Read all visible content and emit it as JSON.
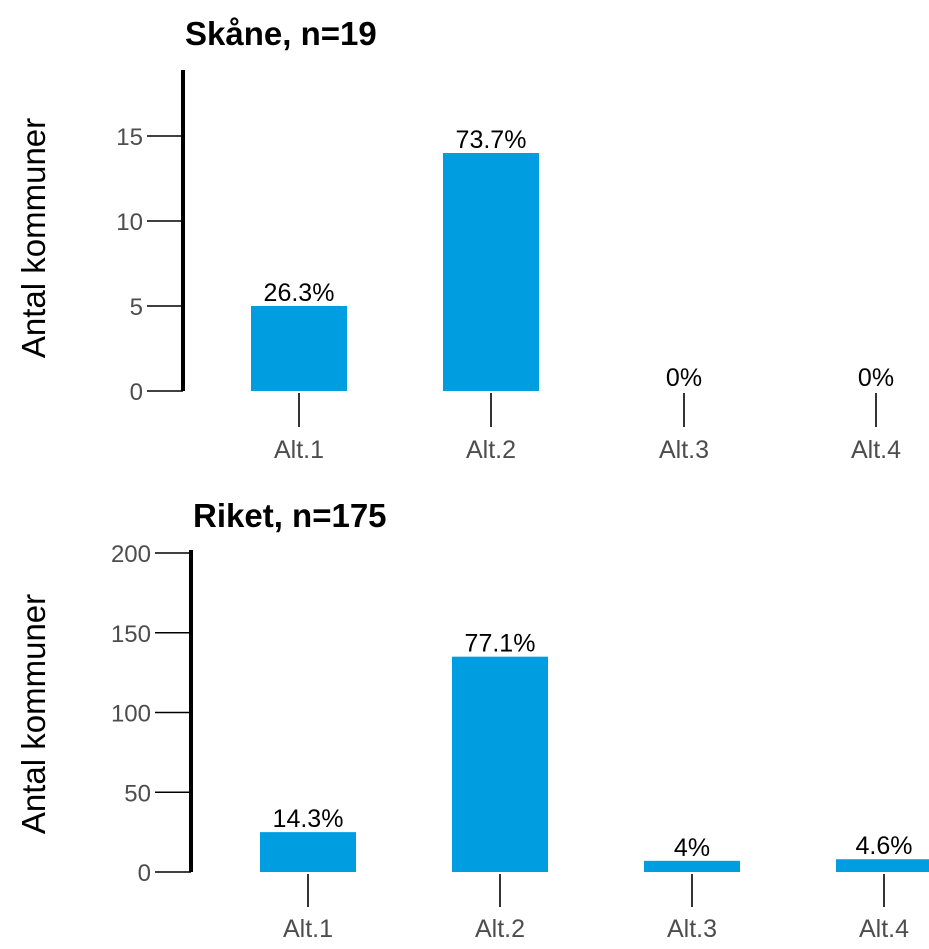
{
  "colors": {
    "bar": "#009ee0",
    "axis": "#000000",
    "tick": "#4d4d4d",
    "text": "#000000"
  },
  "chart_data": [
    {
      "type": "bar",
      "title": "Skåne, n=19",
      "xlabel": "",
      "ylabel": "Antal kommuner",
      "ylim": [
        0,
        19
      ],
      "yticks": [
        0,
        5,
        10,
        15
      ],
      "categories": [
        "Alt.1",
        "Alt.2",
        "Alt.3",
        "Alt.4"
      ],
      "values": [
        5,
        14,
        0,
        0
      ],
      "data_labels": [
        "26.3%",
        "73.7%",
        "0%",
        "0%"
      ],
      "grid": false,
      "legend": "none"
    },
    {
      "type": "bar",
      "title": "Riket, n=175",
      "xlabel": "",
      "ylabel": "Antal kommuner",
      "ylim": [
        0,
        200
      ],
      "yticks": [
        0,
        50,
        100,
        150,
        200
      ],
      "categories": [
        "Alt.1",
        "Alt.2",
        "Alt.3",
        "Alt.4"
      ],
      "values": [
        25,
        135,
        7,
        8
      ],
      "data_labels": [
        "14.3%",
        "77.1%",
        "4%",
        "4.6%"
      ],
      "grid": false,
      "legend": "none"
    }
  ]
}
